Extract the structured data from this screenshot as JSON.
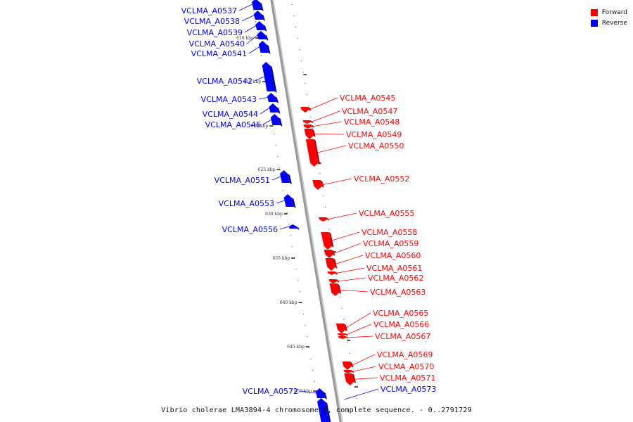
{
  "legend": {
    "items": [
      {
        "label": "Forward",
        "color": "#ff0000"
      },
      {
        "label": "Reverse",
        "color": "#0000ff"
      }
    ]
  },
  "caption": "Vibrio cholerae LMA3894-4 chromosome I, complete sequence. - 0..2791729",
  "colors": {
    "forward": "#ff0000",
    "reverse": "#0000ff",
    "axis": "#999999"
  },
  "axis": {
    "tick_labels": [
      "610 kbp",
      "615 kbp",
      "620 kbp",
      "625 kbp",
      "630 kbp",
      "635 kbp",
      "640 kbp",
      "645 kbp",
      "650 kbp"
    ]
  },
  "genes": {
    "reverse": [
      "VCLMA_A0537",
      "VCLMA_A0538",
      "VCLMA_A0539",
      "VCLMA_A0540",
      "VCLMA_A0541",
      "VCLMA_A0542",
      "VCLMA_A0543",
      "VCLMA_A0544",
      "VCLMA_A0546",
      "VCLMA_A0551",
      "VCLMA_A0553",
      "VCLMA_A0556",
      "VCLMA_A0572",
      "VCLMA_A0573"
    ],
    "forward": [
      "VCLMA_A0545",
      "VCLMA_A0547",
      "VCLMA_A0548",
      "VCLMA_A0549",
      "VCLMA_A0550",
      "VCLMA_A0552",
      "VCLMA_A0555",
      "VCLMA_A0558",
      "VCLMA_A0559",
      "VCLMA_A0560",
      "VCLMA_A0561",
      "VCLMA_A0562",
      "VCLMA_A0563",
      "VCLMA_A0565",
      "VCLMA_A0566",
      "VCLMA_A0567",
      "VCLMA_A0569",
      "VCLMA_A0570",
      "VCLMA_A0571"
    ]
  }
}
